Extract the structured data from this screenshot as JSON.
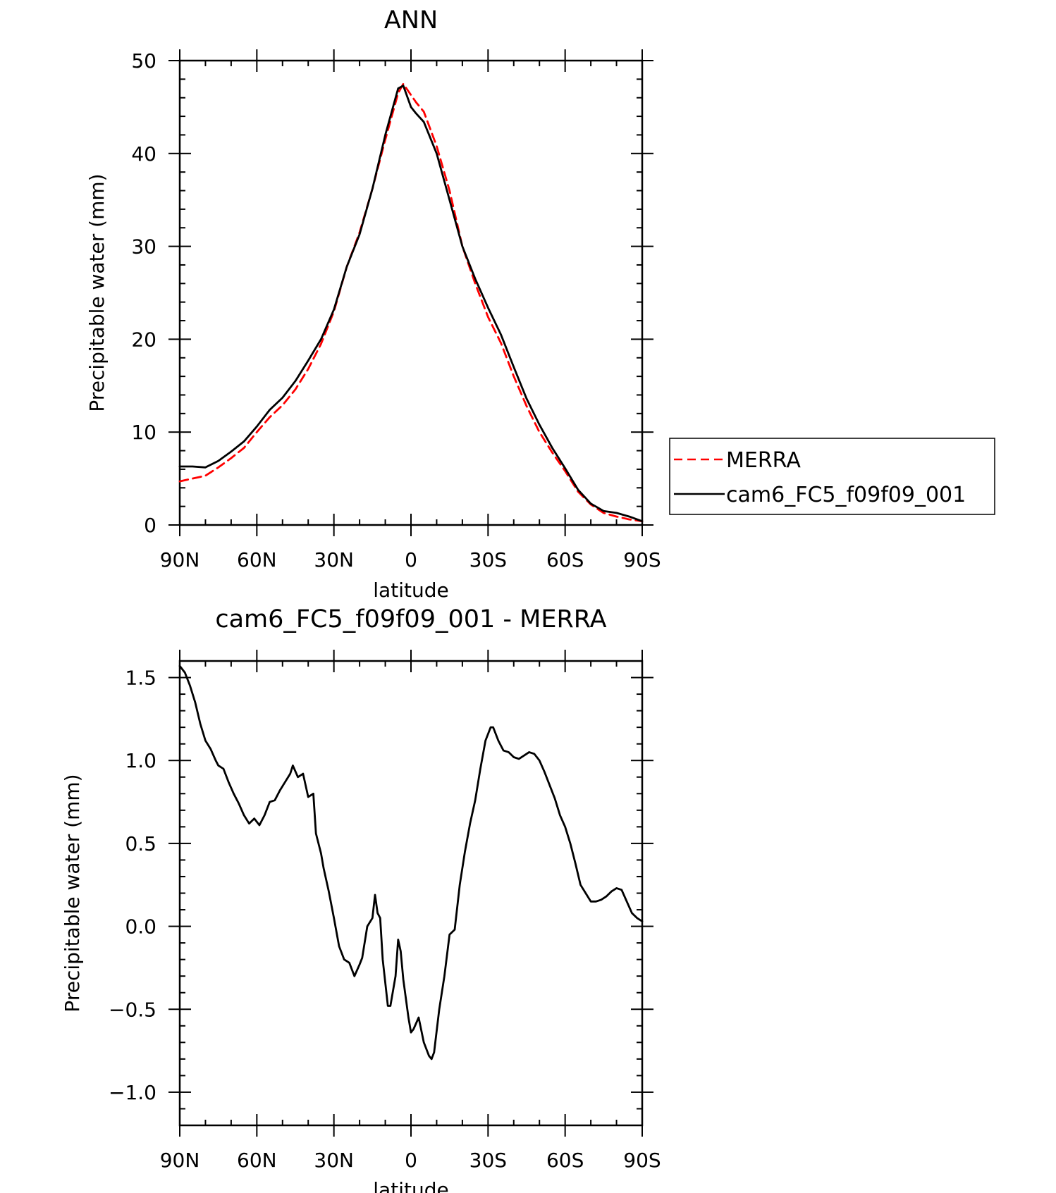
{
  "chart_data": [
    {
      "type": "line",
      "title": "ANN",
      "xlabel": "latitude",
      "ylabel": "Precipitable water (mm)",
      "xlim": [
        90,
        -90
      ],
      "ylim": [
        0,
        50
      ],
      "x_ticks": [
        90,
        60,
        30,
        0,
        -30,
        -60,
        -90
      ],
      "x_tick_labels": [
        "90N",
        "60N",
        "30N",
        "0",
        "30S",
        "60S",
        "90S"
      ],
      "y_ticks": [
        0,
        10,
        20,
        30,
        40,
        50
      ],
      "y_tick_labels": [
        "0",
        "10",
        "20",
        "30",
        "40",
        "50"
      ],
      "legend_position": "right",
      "series": [
        {
          "name": "MERRA",
          "color": "#ff0000",
          "dash": "dashed",
          "points": [
            [
              90,
              4.7
            ],
            [
              85,
              5.0
            ],
            [
              80,
              5.3
            ],
            [
              75,
              6.2
            ],
            [
              70,
              7.2
            ],
            [
              65,
              8.3
            ],
            [
              60,
              10.0
            ],
            [
              55,
              11.6
            ],
            [
              50,
              12.9
            ],
            [
              45,
              14.6
            ],
            [
              40,
              16.8
            ],
            [
              35,
              19.5
            ],
            [
              30,
              23.0
            ],
            [
              25,
              27.8
            ],
            [
              20,
              31.5
            ],
            [
              15,
              36.2
            ],
            [
              10,
              41.5
            ],
            [
              5,
              46.5
            ],
            [
              3,
              47.5
            ],
            [
              0,
              46.3
            ],
            [
              -2,
              45.5
            ],
            [
              -5,
              44.5
            ],
            [
              -10,
              40.8
            ],
            [
              -15,
              36.0
            ],
            [
              -20,
              30.0
            ],
            [
              -25,
              26.0
            ],
            [
              -30,
              22.4
            ],
            [
              -35,
              19.6
            ],
            [
              -40,
              16.0
            ],
            [
              -45,
              12.8
            ],
            [
              -50,
              10.0
            ],
            [
              -55,
              7.8
            ],
            [
              -60,
              5.8
            ],
            [
              -65,
              3.6
            ],
            [
              -70,
              2.2
            ],
            [
              -75,
              1.3
            ],
            [
              -80,
              0.9
            ],
            [
              -85,
              0.6
            ],
            [
              -90,
              0.4
            ]
          ]
        },
        {
          "name": "cam6_FC5_f09f09_001",
          "color": "#000000",
          "dash": "solid",
          "points": [
            [
              90,
              6.3
            ],
            [
              85,
              6.3
            ],
            [
              80,
              6.2
            ],
            [
              75,
              6.9
            ],
            [
              70,
              7.9
            ],
            [
              65,
              9.0
            ],
            [
              60,
              10.6
            ],
            [
              55,
              12.4
            ],
            [
              50,
              13.7
            ],
            [
              45,
              15.5
            ],
            [
              40,
              17.7
            ],
            [
              35,
              20.0
            ],
            [
              30,
              23.2
            ],
            [
              25,
              27.8
            ],
            [
              20,
              31.3
            ],
            [
              15,
              36.2
            ],
            [
              10,
              42.0
            ],
            [
              5,
              47.0
            ],
            [
              3,
              47.3
            ],
            [
              0,
              45.0
            ],
            [
              -2,
              44.3
            ],
            [
              -5,
              43.4
            ],
            [
              -10,
              40.0
            ],
            [
              -15,
              35.0
            ],
            [
              -20,
              30.0
            ],
            [
              -25,
              26.5
            ],
            [
              -30,
              23.4
            ],
            [
              -35,
              20.5
            ],
            [
              -40,
              17.0
            ],
            [
              -45,
              13.6
            ],
            [
              -50,
              10.8
            ],
            [
              -55,
              8.3
            ],
            [
              -60,
              6.1
            ],
            [
              -65,
              3.8
            ],
            [
              -70,
              2.3
            ],
            [
              -75,
              1.5
            ],
            [
              -80,
              1.3
            ],
            [
              -85,
              0.9
            ],
            [
              -90,
              0.4
            ]
          ]
        }
      ]
    },
    {
      "type": "line",
      "title": "cam6_FC5_f09f09_001 - MERRA",
      "xlabel": "latitude",
      "ylabel": "Precipitable water (mm)",
      "xlim": [
        90,
        -90
      ],
      "ylim": [
        -1.2,
        1.6
      ],
      "x_ticks": [
        90,
        60,
        30,
        0,
        -30,
        -60,
        -90
      ],
      "x_tick_labels": [
        "90N",
        "60N",
        "30N",
        "0",
        "30S",
        "60S",
        "90S"
      ],
      "y_ticks": [
        1.5,
        1.0,
        0.5,
        0.0,
        -0.5,
        -1.0
      ],
      "y_tick_labels": [
        "1.5",
        "1.0",
        "0.5",
        "0.0",
        "−0.5",
        "−1.0"
      ],
      "series": [
        {
          "color": "#000000",
          "dash": "solid",
          "points": [
            [
              90,
              1.57
            ],
            [
              88,
              1.53
            ],
            [
              86,
              1.45
            ],
            [
              84,
              1.35
            ],
            [
              82,
              1.22
            ],
            [
              80,
              1.12
            ],
            [
              78,
              1.07
            ],
            [
              76,
              1.0
            ],
            [
              75,
              0.97
            ],
            [
              73,
              0.95
            ],
            [
              71,
              0.87
            ],
            [
              69,
              0.8
            ],
            [
              67,
              0.74
            ],
            [
              65,
              0.67
            ],
            [
              63,
              0.62
            ],
            [
              61,
              0.65
            ],
            [
              59,
              0.61
            ],
            [
              57,
              0.67
            ],
            [
              55,
              0.75
            ],
            [
              53,
              0.76
            ],
            [
              51,
              0.82
            ],
            [
              49,
              0.87
            ],
            [
              47,
              0.92
            ],
            [
              46,
              0.97
            ],
            [
              44,
              0.9
            ],
            [
              42,
              0.92
            ],
            [
              40,
              0.78
            ],
            [
              38,
              0.8
            ],
            [
              37,
              0.56
            ],
            [
              35,
              0.44
            ],
            [
              34,
              0.35
            ],
            [
              32,
              0.21
            ],
            [
              30,
              0.05
            ],
            [
              28,
              -0.12
            ],
            [
              26,
              -0.2
            ],
            [
              24,
              -0.22
            ],
            [
              22,
              -0.3
            ],
            [
              20,
              -0.23
            ],
            [
              19,
              -0.19
            ],
            [
              17,
              0.0
            ],
            [
              15,
              0.05
            ],
            [
              14,
              0.19
            ],
            [
              13,
              0.08
            ],
            [
              12,
              0.05
            ],
            [
              11,
              -0.2
            ],
            [
              9,
              -0.48
            ],
            [
              8,
              -0.48
            ],
            [
              6,
              -0.3
            ],
            [
              5,
              -0.08
            ],
            [
              4,
              -0.15
            ],
            [
              3,
              -0.32
            ],
            [
              1,
              -0.55
            ],
            [
              0,
              -0.64
            ],
            [
              -1,
              -0.62
            ],
            [
              -3,
              -0.55
            ],
            [
              -5,
              -0.7
            ],
            [
              -7,
              -0.78
            ],
            [
              -8,
              -0.8
            ],
            [
              -9,
              -0.76
            ],
            [
              -11,
              -0.5
            ],
            [
              -13,
              -0.3
            ],
            [
              -15,
              -0.05
            ],
            [
              -17,
              -0.02
            ],
            [
              -19,
              0.25
            ],
            [
              -21,
              0.45
            ],
            [
              -23,
              0.62
            ],
            [
              -25,
              0.76
            ],
            [
              -27,
              0.95
            ],
            [
              -29,
              1.12
            ],
            [
              -31,
              1.2
            ],
            [
              -32,
              1.2
            ],
            [
              -34,
              1.12
            ],
            [
              -36,
              1.06
            ],
            [
              -38,
              1.05
            ],
            [
              -40,
              1.02
            ],
            [
              -42,
              1.01
            ],
            [
              -44,
              1.03
            ],
            [
              -46,
              1.05
            ],
            [
              -48,
              1.04
            ],
            [
              -50,
              1.0
            ],
            [
              -52,
              0.93
            ],
            [
              -54,
              0.85
            ],
            [
              -56,
              0.77
            ],
            [
              -58,
              0.67
            ],
            [
              -60,
              0.6
            ],
            [
              -62,
              0.5
            ],
            [
              -64,
              0.38
            ],
            [
              -66,
              0.25
            ],
            [
              -68,
              0.2
            ],
            [
              -70,
              0.15
            ],
            [
              -72,
              0.15
            ],
            [
              -74,
              0.16
            ],
            [
              -76,
              0.18
            ],
            [
              -78,
              0.21
            ],
            [
              -80,
              0.23
            ],
            [
              -82,
              0.22
            ],
            [
              -84,
              0.15
            ],
            [
              -86,
              0.08
            ],
            [
              -88,
              0.05
            ],
            [
              -90,
              0.03
            ]
          ]
        }
      ]
    }
  ]
}
